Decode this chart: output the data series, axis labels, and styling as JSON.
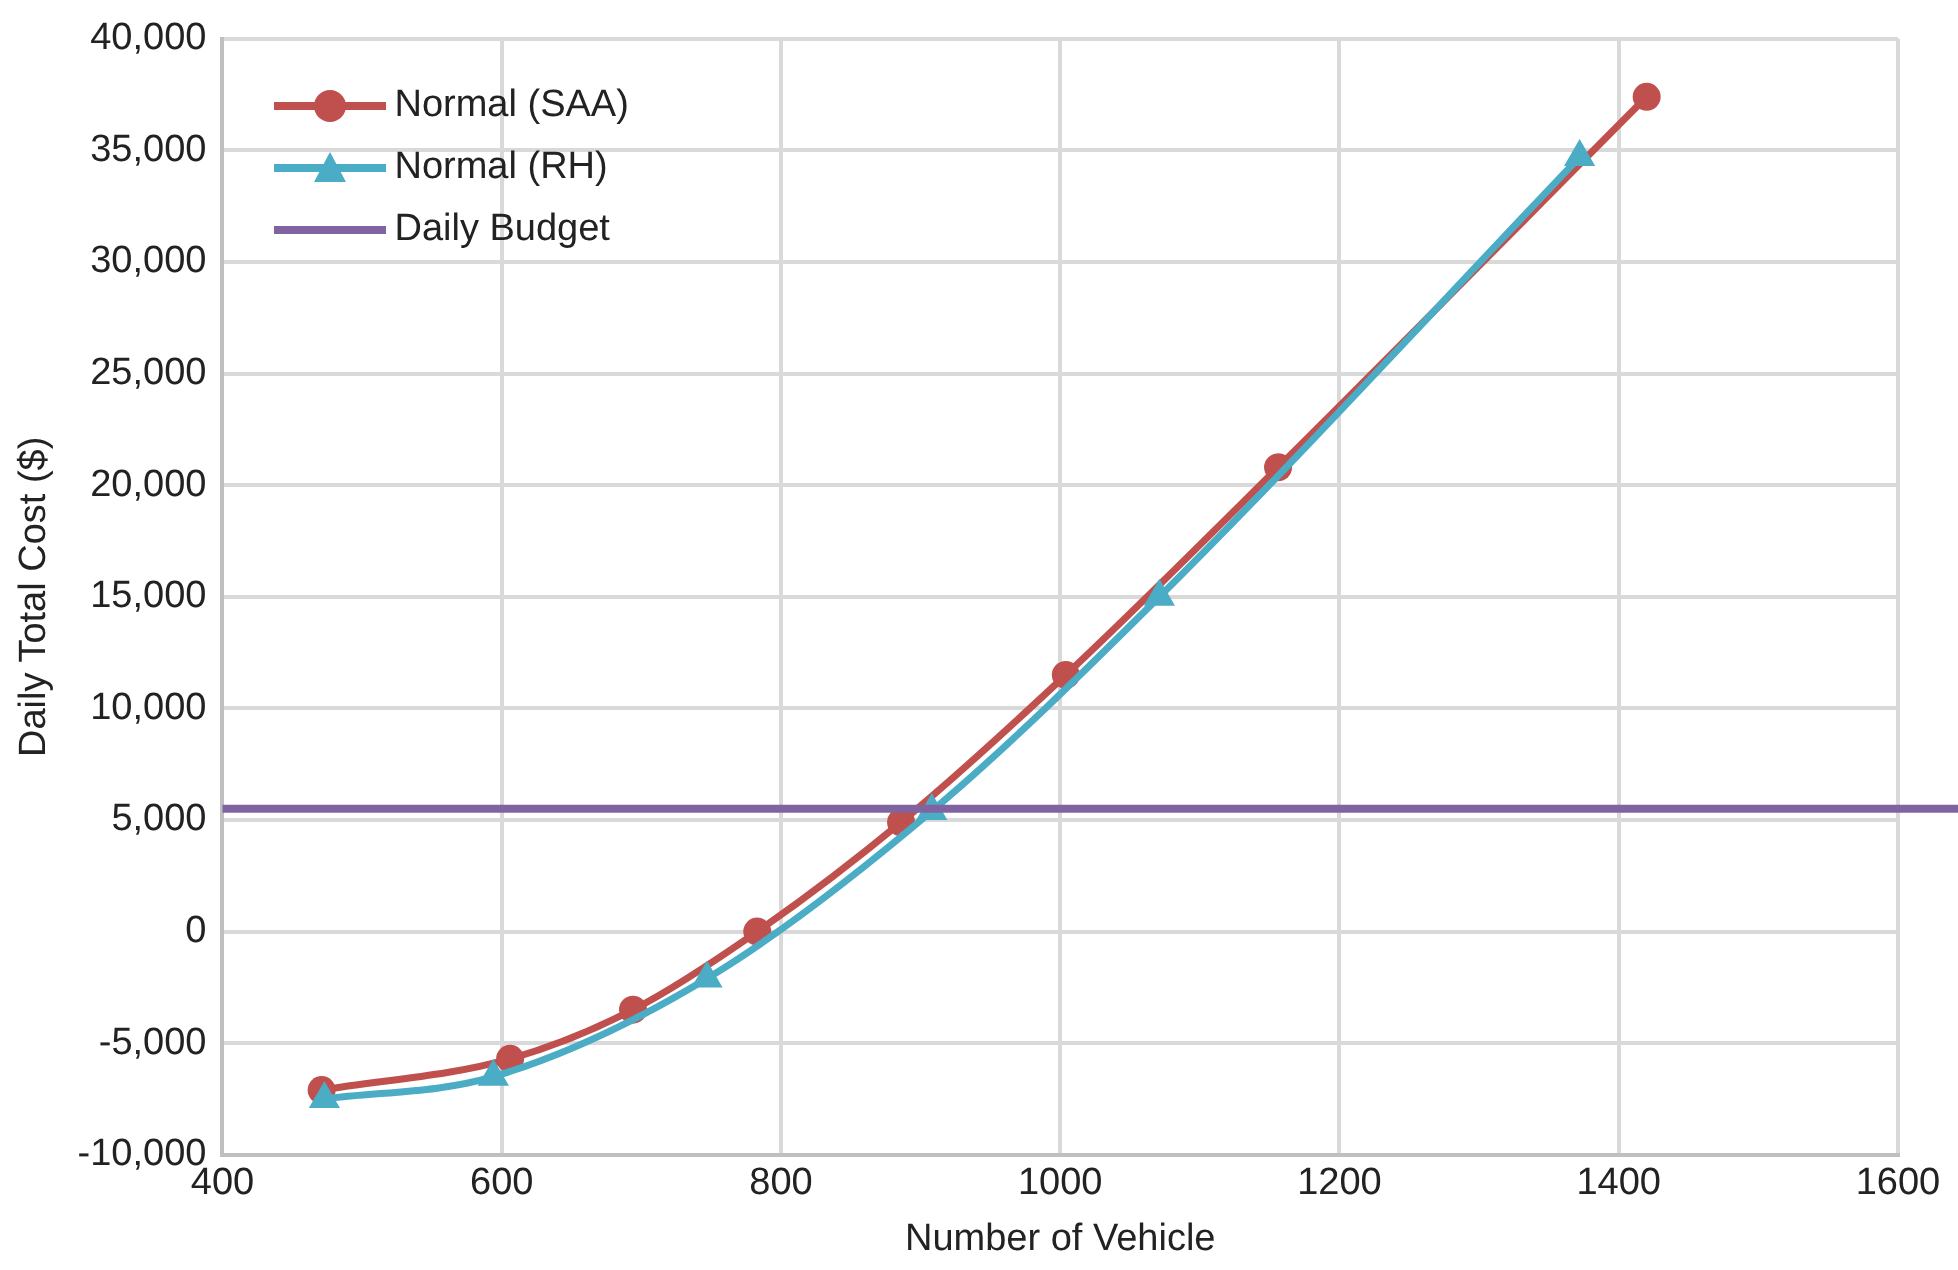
{
  "chart_data": {
    "type": "line",
    "xlabel": "Number of Vehicle",
    "ylabel": "Daily Total Cost ($)",
    "xlim": [
      400,
      1600
    ],
    "xticks": [
      400,
      600,
      800,
      1000,
      1200,
      1400,
      1600
    ],
    "ylim": [
      -10000,
      40000
    ],
    "yticks": [
      {
        "value": -10000,
        "label": "-10,000"
      },
      {
        "value": -5000,
        "label": "-5,000"
      },
      0,
      {
        "value": 5000,
        "label": "5,000"
      },
      {
        "value": 10000,
        "label": "10,000"
      },
      {
        "value": 15000,
        "label": "15,000"
      },
      {
        "value": 20000,
        "label": "20,000"
      },
      {
        "value": 25000,
        "label": "25,000"
      },
      {
        "value": 30000,
        "label": "30,000"
      },
      {
        "value": 35000,
        "label": "35,000"
      },
      {
        "value": 40000,
        "label": "40,000"
      }
    ],
    "series": [
      {
        "name": "Normal (SAA)",
        "color": "#c0504d",
        "marker": "circle",
        "x": [
          471,
          606,
          694,
          783,
          886,
          1004,
          1156,
          1420
        ],
        "values": [
          -7100,
          -5700,
          -3500,
          0,
          4900,
          11500,
          20800,
          37400
        ]
      },
      {
        "name": "Normal (RH)",
        "color": "#4bacc6",
        "marker": "triangle",
        "x": [
          473,
          594,
          747,
          908,
          1071,
          1372
        ],
        "values": [
          -7500,
          -6500,
          -2100,
          5400,
          15000,
          34700
        ]
      }
    ],
    "ref_lines": [
      {
        "axis": "y",
        "value": 5500,
        "label": "Daily Budget",
        "color": "#8064a2"
      }
    ],
    "grid": true,
    "legend": "top left"
  }
}
